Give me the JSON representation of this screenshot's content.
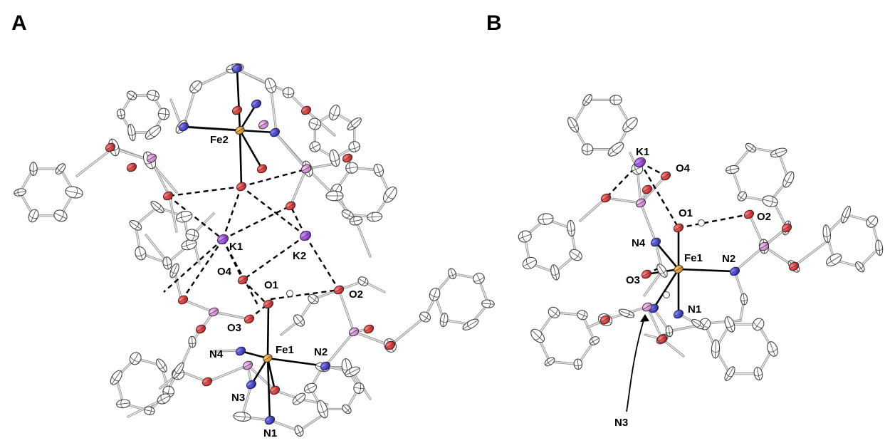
{
  "panels": {
    "a": {
      "letter": "A",
      "labels": {
        "fe1": "Fe1",
        "fe2": "Fe2",
        "k1": "K1",
        "k2": "K2",
        "o1": "O1",
        "o2": "O2",
        "o3": "O3",
        "o4": "O4",
        "n1": "N1",
        "n2": "N2",
        "n3": "N3",
        "n4": "N4"
      }
    },
    "b": {
      "letter": "B",
      "labels": {
        "fe1": "Fe1",
        "k1": "K1",
        "o1": "O1",
        "o2": "O2",
        "o3": "O3",
        "o4": "O4",
        "n1": "N1",
        "n2": "N2",
        "n3": "N3",
        "n4": "N4"
      }
    }
  },
  "colors": {
    "carbon": "#ffffff",
    "nitrogen": "#1f1fd6",
    "oxygen": "#e01616",
    "phosphorus": "#d98fd9",
    "potassium": "#9b30e8",
    "iron": "#f09a1a",
    "hydrogen": "#ffffff"
  }
}
